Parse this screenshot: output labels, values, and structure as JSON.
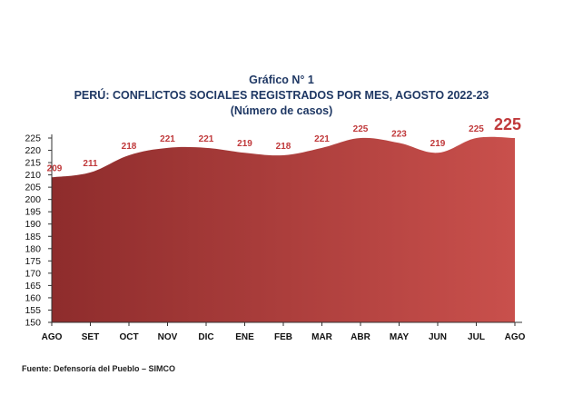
{
  "title": "Gráfico N° 1",
  "subtitle": "PERÚ: CONFLICTOS SOCIALES REGISTRADOS POR MES, AGOSTO 2022-23",
  "note": "(Número de casos)",
  "source": "Fuente: Defensoría del Pueblo – SIMCO",
  "chart_data": {
    "type": "area",
    "title": "PERÚ: CONFLICTOS SOCIALES REGISTRADOS POR MES, AGOSTO 2022-23",
    "categories": [
      "AGO",
      "SET",
      "OCT",
      "NOV",
      "DIC",
      "ENE",
      "FEB",
      "MAR",
      "ABR",
      "MAY",
      "JUN",
      "JUL",
      "AGO"
    ],
    "values": [
      209,
      211,
      218,
      221,
      221,
      219,
      218,
      221,
      225,
      223,
      219,
      225,
      225
    ],
    "ylim": [
      150,
      225
    ],
    "yticks": [
      150,
      155,
      160,
      165,
      170,
      175,
      180,
      185,
      190,
      195,
      200,
      205,
      210,
      215,
      220,
      225
    ],
    "xlabel": "",
    "ylabel": "",
    "grid": false,
    "highlight_last": true,
    "colors": {
      "fill_start": "#8e2c2c",
      "fill_end": "#c9504c",
      "label": "#c0393b",
      "axis": "#333333",
      "tick_text": "#111111"
    }
  }
}
